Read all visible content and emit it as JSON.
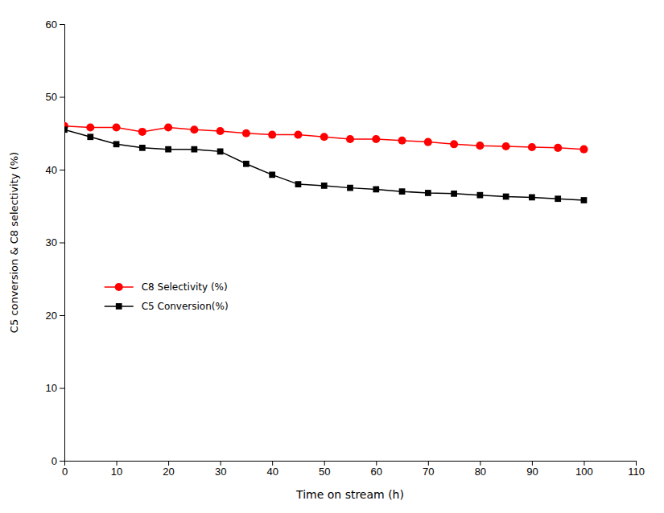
{
  "chart_data": {
    "type": "line",
    "xlabel": "Time on stream (h)",
    "ylabel": "C5 conversion & C8 selectivity (%)",
    "x": [
      0,
      5,
      10,
      15,
      20,
      25,
      30,
      35,
      40,
      45,
      50,
      55,
      60,
      65,
      70,
      75,
      80,
      85,
      90,
      95,
      100
    ],
    "series": [
      {
        "name": "C8 Selectivity (%)",
        "color": "#ff0000",
        "marker": "circle",
        "values": [
          46.0,
          45.8,
          45.8,
          45.2,
          45.8,
          45.5,
          45.3,
          45.0,
          44.8,
          44.8,
          44.5,
          44.2,
          44.2,
          44.0,
          43.8,
          43.5,
          43.3,
          43.2,
          43.1,
          43.0,
          42.8
        ]
      },
      {
        "name": "C5 Conversion(%)",
        "color": "#000000",
        "marker": "square",
        "values": [
          45.5,
          44.5,
          43.5,
          43.0,
          42.8,
          42.8,
          42.5,
          40.8,
          39.3,
          38.0,
          37.8,
          37.5,
          37.3,
          37.0,
          36.8,
          36.7,
          36.5,
          36.3,
          36.2,
          36.0,
          35.8
        ]
      }
    ],
    "xlim": [
      0,
      110
    ],
    "ylim": [
      0,
      60
    ],
    "xticks": [
      0,
      10,
      20,
      30,
      40,
      50,
      60,
      70,
      80,
      90,
      100,
      110
    ],
    "yticks": [
      0,
      10,
      20,
      30,
      40,
      50,
      60
    ],
    "grid": false,
    "legend": "lower left"
  }
}
